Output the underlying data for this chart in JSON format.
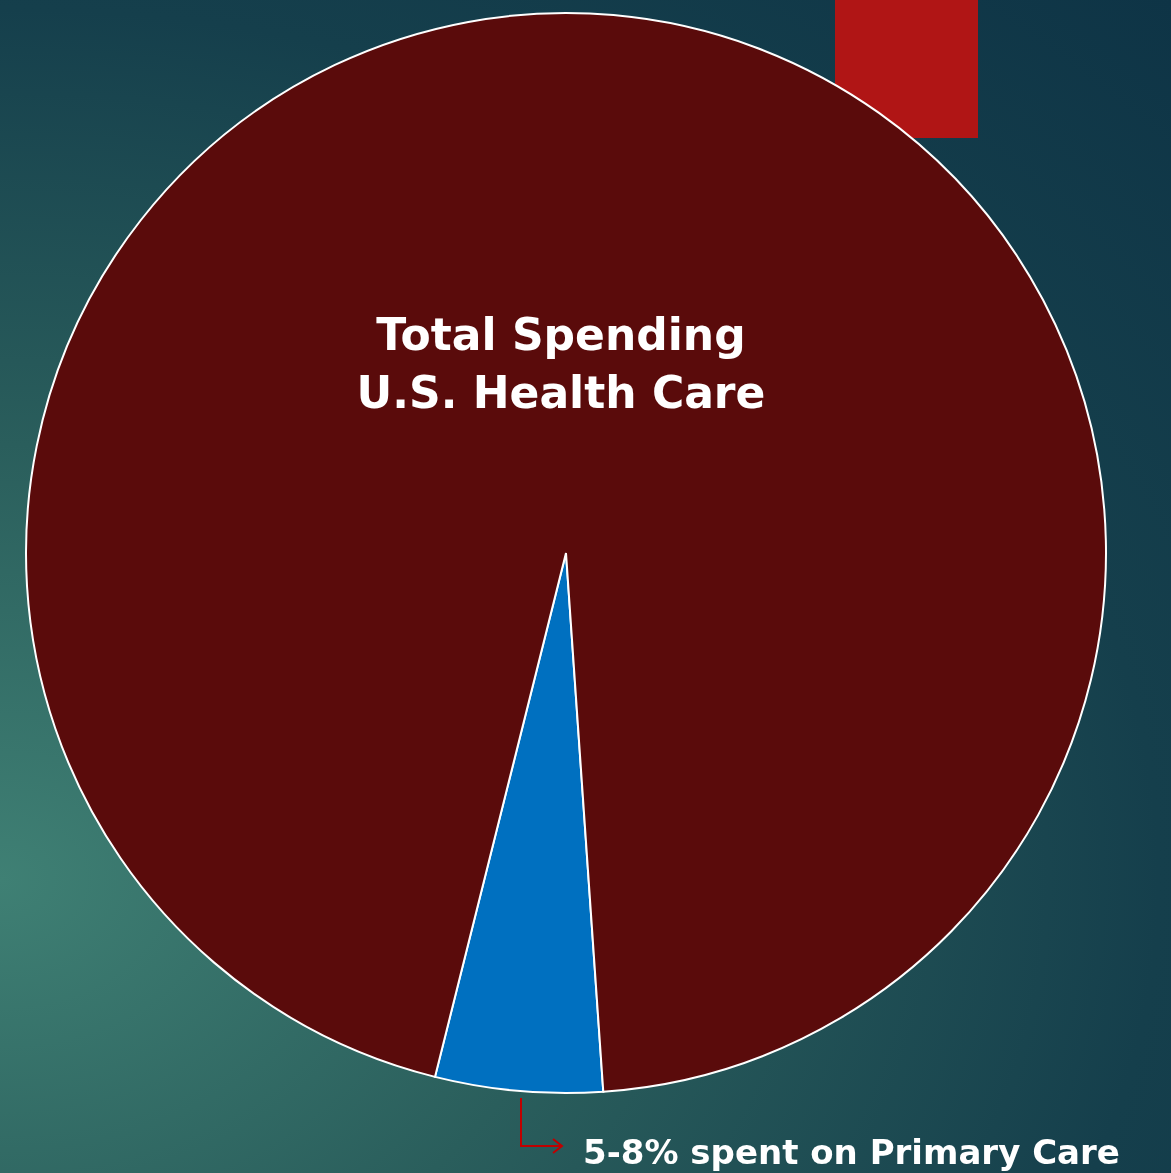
{
  "chart_data": {
    "type": "pie",
    "categories": [
      "Total Spending\nU.S. Health Care",
      "5-8% spent on Primary Care"
    ],
    "values": [
      95,
      5
    ],
    "colors": [
      "#5a0b0b",
      "#0070c0"
    ],
    "legend": false
  }
}
